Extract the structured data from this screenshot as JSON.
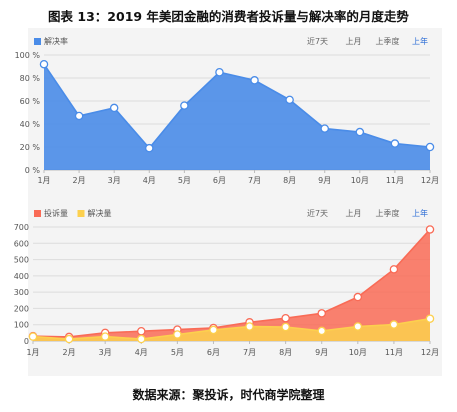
{
  "figure": {
    "title": "图表 13：2019 年美团金融的消费者投诉量与解决率的月度走势",
    "source": "数据来源：聚投诉，时代商学院整理"
  },
  "range_selector": {
    "options": [
      "近7天",
      "上月",
      "上季度",
      "上年"
    ],
    "active": "上年"
  },
  "chart_data": [
    {
      "type": "area",
      "categories": [
        "1月",
        "2月",
        "3月",
        "4月",
        "5月",
        "6月",
        "7月",
        "8月",
        "9月",
        "10月",
        "11月",
        "12月"
      ],
      "series": [
        {
          "name": "解决率",
          "values": [
            92,
            47,
            54,
            19,
            56,
            85,
            78,
            61,
            36,
            33,
            23,
            20
          ],
          "color": "#4a8ce8"
        }
      ],
      "ylim": [
        0,
        100
      ],
      "yticks": [
        0,
        20,
        40,
        60,
        80,
        100
      ],
      "ytick_labels": [
        "0 %",
        "20 %",
        "40 %",
        "60 %",
        "80 %",
        "100 %"
      ],
      "grid": true,
      "legend": "top-left"
    },
    {
      "type": "area",
      "categories": [
        "1月",
        "2月",
        "3月",
        "4月",
        "5月",
        "6月",
        "7月",
        "8月",
        "9月",
        "10月",
        "11月",
        "12月"
      ],
      "series": [
        {
          "name": "投诉量",
          "values": [
            30,
            25,
            50,
            60,
            70,
            80,
            115,
            140,
            170,
            270,
            440,
            685
          ],
          "color": "#f96b56"
        },
        {
          "name": "解决量",
          "values": [
            27,
            12,
            27,
            12,
            40,
            68,
            89,
            86,
            62,
            89,
            101,
            137
          ],
          "color": "#fcd04e"
        }
      ],
      "ylim": [
        0,
        700
      ],
      "yticks": [
        0,
        100,
        200,
        300,
        400,
        500,
        600,
        700
      ],
      "ytick_labels": [
        "0",
        "100",
        "200",
        "300",
        "400",
        "500",
        "600",
        "700"
      ],
      "grid": true,
      "legend": "top-left"
    }
  ]
}
